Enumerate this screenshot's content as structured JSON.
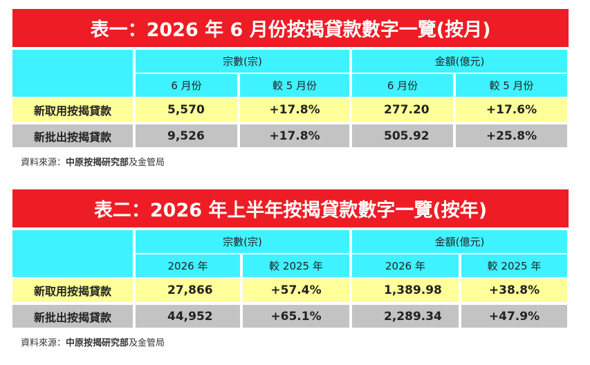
{
  "tables": [
    {
      "title": "表一：2026 年 6 月份按揭貸款數字一覽(按月)",
      "group_headers": [
        "宗數(宗)",
        "金額(億元)"
      ],
      "sub_headers": [
        "6 月份",
        "較 5 月份",
        "6 月份",
        "較 5 月份"
      ],
      "rows": [
        {
          "label": "新取用按揭貸款",
          "cells": [
            "5,570",
            "+17.8%",
            "277.20",
            "+17.6%"
          ]
        },
        {
          "label": "新批出按揭貸款",
          "cells": [
            "9,526",
            "+17.8%",
            "505.92",
            "+25.8%"
          ]
        }
      ],
      "source": {
        "prefix": "資料來源：",
        "org": "中原按揭研究部",
        "suffix": "及金管局"
      }
    },
    {
      "title": "表二：2026 年上半年按揭貸款數字一覽(按年)",
      "group_headers": [
        "宗數(宗)",
        "金額(億元)"
      ],
      "sub_headers": [
        "2026 年",
        "較 2025 年",
        "2026 年",
        "較 2025 年"
      ],
      "rows": [
        {
          "label": "新取用按揭貸款",
          "cells": [
            "27,866",
            "+57.4%",
            "1,389.98",
            "+38.8%"
          ]
        },
        {
          "label": "新批出按揭貸款",
          "cells": [
            "44,952",
            "+65.1%",
            "2,289.34",
            "+47.9%"
          ]
        }
      ],
      "source": {
        "prefix": "資料來源：",
        "org": "中原按揭研究部",
        "suffix": "及金管局"
      }
    }
  ]
}
